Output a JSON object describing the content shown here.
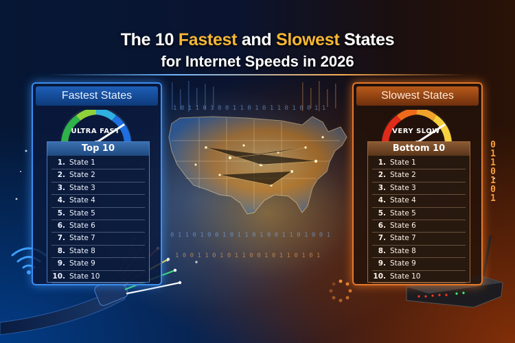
{
  "title": {
    "line1_prefix": "The 10 ",
    "line1_fastest": "Fastest",
    "line1_and": " and ",
    "line1_slowest": "Slowest",
    "line1_suffix": " States",
    "line2": "for Internet Speeds in 2026"
  },
  "fastest": {
    "header": "Fastest States",
    "gauge_label": "ULTRA FAST",
    "list_title": "Top 10",
    "items": [
      {
        "rank": "1.",
        "name": "State 1"
      },
      {
        "rank": "2.",
        "name": "State 2"
      },
      {
        "rank": "3.",
        "name": "State 3"
      },
      {
        "rank": "4.",
        "name": "State 4"
      },
      {
        "rank": "5.",
        "name": "State 5"
      },
      {
        "rank": "6.",
        "name": "State 6"
      },
      {
        "rank": "7.",
        "name": "State 7"
      },
      {
        "rank": "8.",
        "name": "State 8"
      },
      {
        "rank": "9.",
        "name": "State 9"
      },
      {
        "rank": "10.",
        "name": "State 10"
      }
    ]
  },
  "slowest": {
    "header": "Slowest States",
    "gauge_label": "VERY SLOW",
    "list_title": "Bottom 10",
    "items": [
      {
        "rank": "1.",
        "name": "State 1"
      },
      {
        "rank": "2.",
        "name": "State 2"
      },
      {
        "rank": "3.",
        "name": "State 3"
      },
      {
        "rank": "4.",
        "name": "State 4"
      },
      {
        "rank": "5.",
        "name": "State 5"
      },
      {
        "rank": "6.",
        "name": "State 6"
      },
      {
        "rank": "7.",
        "name": "State 7"
      },
      {
        "rank": "8.",
        "name": "State 8"
      },
      {
        "rank": "9.",
        "name": "State 9"
      },
      {
        "rank": "10.",
        "name": "State 10"
      }
    ]
  },
  "decor": {
    "binary_digits": [
      "0",
      "1",
      "1",
      "0",
      "1",
      "0",
      "1"
    ],
    "icons": [
      "wifi-icon",
      "fiber-cable-icon",
      "router-icon",
      "loading-spinner-icon",
      "us-map-icon",
      "speed-gauge-icon"
    ]
  },
  "colors": {
    "accent_gold": "#f7b733",
    "fast_blue": "#3d8df0",
    "slow_orange": "#e6782a"
  }
}
